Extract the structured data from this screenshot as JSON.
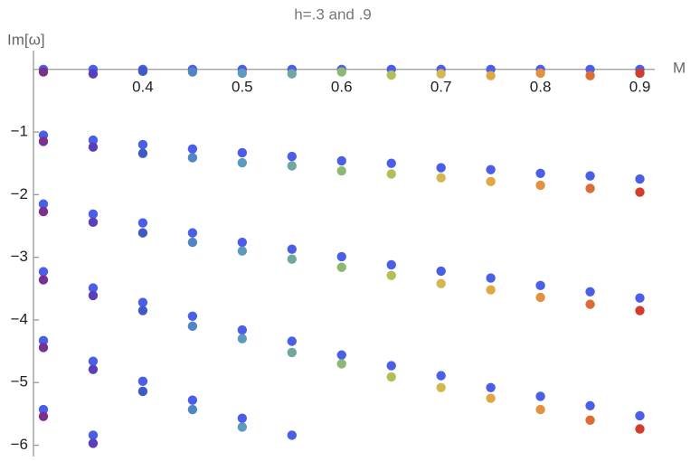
{
  "chart_data": {
    "type": "scatter",
    "title": "h=.3 and .9",
    "x_label": "M",
    "y_label": "Im[ω]",
    "xlim": [
      0.29,
      0.915
    ],
    "ylim": [
      -6.18,
      0.3
    ],
    "xticks": [
      0.4,
      0.5,
      0.6,
      0.7,
      0.8,
      0.9
    ],
    "yticks": [
      {
        "value": -6,
        "label": "−6"
      },
      {
        "value": -5,
        "label": "−5"
      },
      {
        "value": -4,
        "label": "−4"
      },
      {
        "value": -3,
        "label": "−3"
      },
      {
        "value": -2,
        "label": "−2"
      },
      {
        "value": -1,
        "label": "−1"
      }
    ],
    "series": [
      {
        "color": "#4a5ee8",
        "x": [
          0.3,
          0.3,
          0.3,
          0.3,
          0.3,
          0.3,
          0.35,
          0.35,
          0.35,
          0.35,
          0.35,
          0.35,
          0.4,
          0.4,
          0.4,
          0.4,
          0.4,
          0.45,
          0.45,
          0.45,
          0.45,
          0.45,
          0.5,
          0.5,
          0.5,
          0.5,
          0.5,
          0.55,
          0.55,
          0.55,
          0.55,
          0.55,
          0.6,
          0.6,
          0.6,
          0.6,
          0.65,
          0.65,
          0.65,
          0.65,
          0.7,
          0.7,
          0.7,
          0.7,
          0.75,
          0.75,
          0.75,
          0.75,
          0.8,
          0.8,
          0.8,
          0.8,
          0.85,
          0.85,
          0.85,
          0.85,
          0.9,
          0.9,
          0.9,
          0.9
        ],
        "values": [
          0,
          -1.05,
          -2.15,
          -3.23,
          -4.33,
          -5.43,
          0,
          -1.13,
          -2.31,
          -3.49,
          -4.66,
          -5.84,
          0,
          -1.2,
          -2.45,
          -3.72,
          -4.98,
          0,
          -1.27,
          -2.61,
          -3.94,
          -5.28,
          0,
          -1.33,
          -2.76,
          -4.16,
          -5.57,
          0,
          -1.39,
          -2.87,
          -4.34,
          -5.84,
          0,
          -1.46,
          -2.99,
          -4.56,
          0,
          -1.5,
          -3.12,
          -4.73,
          0,
          -1.57,
          -3.22,
          -4.89,
          0,
          -1.6,
          -3.33,
          -5.08,
          0,
          -1.66,
          -3.45,
          -5.22,
          0,
          -1.7,
          -3.55,
          -5.37,
          0,
          -1.75,
          -3.65,
          -5.53
        ]
      },
      {
        "x": [
          0.3,
          0.3,
          0.3,
          0.3,
          0.3,
          0.3,
          0.35,
          0.35,
          0.35,
          0.35,
          0.35,
          0.35,
          0.4,
          0.4,
          0.4,
          0.4,
          0.4,
          0.45,
          0.45,
          0.45,
          0.45,
          0.45,
          0.5,
          0.5,
          0.5,
          0.5,
          0.5,
          0.55,
          0.55,
          0.55,
          0.55,
          0.6,
          0.6,
          0.6,
          0.6,
          0.65,
          0.65,
          0.65,
          0.65,
          0.7,
          0.7,
          0.7,
          0.7,
          0.75,
          0.75,
          0.75,
          0.75,
          0.8,
          0.8,
          0.8,
          0.8,
          0.85,
          0.85,
          0.85,
          0.85,
          0.9,
          0.9,
          0.9,
          0.9
        ],
        "values": [
          -0.04,
          -1.15,
          -2.27,
          -3.36,
          -4.44,
          -5.54,
          -0.07,
          -1.24,
          -2.44,
          -3.61,
          -4.79,
          -5.97,
          -0.03,
          -1.34,
          -2.61,
          -3.85,
          -5.14,
          -0.04,
          -1.41,
          -2.76,
          -4.1,
          -5.43,
          -0.06,
          -1.49,
          -2.9,
          -4.3,
          -5.71,
          -0.07,
          -1.54,
          -3.03,
          -4.52,
          -0.04,
          -1.62,
          -3.16,
          -4.7,
          -0.09,
          -1.67,
          -3.29,
          -4.91,
          -0.07,
          -1.73,
          -3.42,
          -5.08,
          -0.1,
          -1.79,
          -3.52,
          -5.25,
          -0.06,
          -1.85,
          -3.64,
          -5.43,
          -0.1,
          -1.9,
          -3.75,
          -5.6,
          -0.06,
          -1.96,
          -3.85,
          -5.74
        ],
        "colors": [
          "#7b2f8f",
          "#7b2f8f",
          "#7b2f8f",
          "#7b2f8f",
          "#7b2f8f",
          "#7b2f8f",
          "#5b3fb8",
          "#5b3fb8",
          "#5b3fb8",
          "#5b3fb8",
          "#5b3fb8",
          "#5b3fb8",
          "#3e5ac4",
          "#3e5ac4",
          "#3e5ac4",
          "#3e5ac4",
          "#3e5ac4",
          "#4f86c4",
          "#4f86c4",
          "#4f86c4",
          "#4f86c4",
          "#4f86c4",
          "#5e9ac0",
          "#5e9ac0",
          "#5e9ac0",
          "#5e9ac0",
          "#5e9ac0",
          "#6fa8a0",
          "#6fa8a0",
          "#6fa8a0",
          "#6fa8a0",
          "#8db872",
          "#8db872",
          "#8db872",
          "#8db872",
          "#b5bd5a",
          "#b5bd5a",
          "#b5bd5a",
          "#b5bd5a",
          "#d2b84f",
          "#d2b84f",
          "#d2b84f",
          "#d2b84f",
          "#e0a845",
          "#e0a845",
          "#e0a845",
          "#e0a845",
          "#e39040",
          "#e39040",
          "#e39040",
          "#e39040",
          "#dc6b35",
          "#dc6b35",
          "#dc6b35",
          "#dc6b35",
          "#d13d2c",
          "#d13d2c",
          "#d13d2c",
          "#d13d2c"
        ]
      }
    ]
  }
}
